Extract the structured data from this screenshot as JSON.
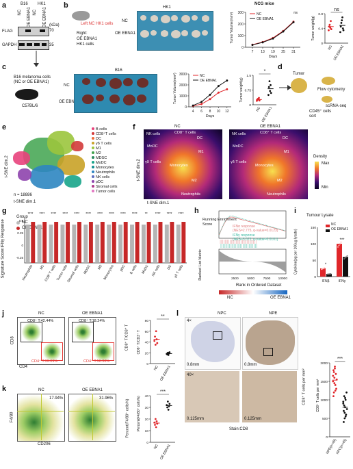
{
  "panel_labels": {
    "a": "a",
    "b": "b",
    "c": "c",
    "d": "d",
    "e": "e",
    "f": "f",
    "g": "g",
    "h": "h",
    "i": "i",
    "j": "j",
    "k": "k",
    "l": "l"
  },
  "a": {
    "b16": "B16",
    "hk1": "HK1",
    "nc": "NC",
    "oe": "OE EBNA1",
    "kda": "(kDa)",
    "flag": "FLAG",
    "gapdh": "GAPDH",
    "m70": "70",
    "m35": "35"
  },
  "b": {
    "mouse_text": "Left:NC HK1 cells",
    "right_text": "Right:",
    "oe_text": "OE EBNA1",
    "hk1_text": "HK1 cells",
    "photo_title": "HK1",
    "row_nc": "NC",
    "row_oe": "OE EBNA1",
    "chart_title": "NCG mice",
    "ns1": "ns",
    "ns2": "ns"
  },
  "c": {
    "photo_title": "B16",
    "row_nc": "NC",
    "row_oe": "OE EBNA1",
    "star": "*"
  },
  "c_left": {
    "cells": "B16 melanoma cells",
    "cells2": "(NC or OE EBNA1)",
    "mouse": "C57BL/6"
  },
  "d": {
    "tumor": "Tumor",
    "flow": "Flow cytometry",
    "scrna": "scRNA-seq",
    "cd45": "CD45⁺ cells",
    "sort": "sort"
  },
  "e": {
    "xlabel": "t-SNE dim.1",
    "ylabel": "t-SNE dim.2",
    "n": "n = 18886",
    "legend": [
      {
        "label": "B cells",
        "color": "#e8427c"
      },
      {
        "label": "CD8⁺T cells",
        "color": "#d33a3a"
      },
      {
        "label": "DC",
        "color": "#ef6b3a"
      },
      {
        "label": "γδ T cells",
        "color": "#c9a227"
      },
      {
        "label": "M1",
        "color": "#9bc53d"
      },
      {
        "label": "M2",
        "color": "#3fa34d"
      },
      {
        "label": "MDSC",
        "color": "#2b8a5e"
      },
      {
        "label": "MoDC",
        "color": "#17a589"
      },
      {
        "label": "Monocytes",
        "color": "#138d90"
      },
      {
        "label": "Neutrophils",
        "color": "#2e86c1"
      },
      {
        "label": "NK cells",
        "color": "#5d6dbe"
      },
      {
        "label": "pDC",
        "color": "#8e44ad"
      },
      {
        "label": "Stromal cells",
        "color": "#b03a8c"
      },
      {
        "label": "Tumor cells",
        "color": "#e377c2"
      }
    ]
  },
  "f": {
    "nc": "NC",
    "oe": "OE EBNA1",
    "xlabel": "t-SNE dim.1",
    "ylabel": "t-SNE dim.2",
    "density": "Density",
    "max": "Max",
    "min": "Min",
    "labels": [
      "NK cells",
      "CD8⁺ T cells",
      "DC",
      "MoDC",
      "M1",
      "γδ T cells",
      "Monocytes",
      "M2",
      "Neutrophils"
    ]
  },
  "g": {
    "ylabel": "Signature Score:IFNγ Response",
    "group": "Group",
    "nc": "NC",
    "oe": "OE EBNA1",
    "cats": [
      "Neutrophils",
      "M1",
      "CD8⁺T cells",
      "Tumor cells",
      "Stromal cells",
      "MDSC",
      "M2",
      "Monocytes",
      "pDC",
      "B cells",
      "MoDC",
      "NK cells",
      "DC",
      "γδ T cells"
    ],
    "sig": [
      "****",
      "****",
      "****",
      "****",
      "****",
      "****",
      "****",
      "****",
      "****",
      "****",
      "**",
      "****",
      "****",
      "****"
    ]
  },
  "h": {
    "ylabel1": "Running Enrichment",
    "ylabel2": "Score",
    "ylabel3": "Ranked List Metric",
    "leg1": "IFNα response",
    "leg1b": "(NES=2.775, q-value=0.0123)",
    "leg2": "IFNγ response",
    "leg2b": "(NES=3.072, q-value=0.0101)",
    "xlabel": "Rank in Ordered Dataset",
    "nc": "NC",
    "oe": "OE EBNA1",
    "ticks": [
      "2500",
      "5000",
      "7500",
      "10000"
    ]
  },
  "i": {
    "title": "Tumour Lysate",
    "ylabel": "Cytokine(pg per 100ug lysate)",
    "nc": "NC",
    "oe": "OE EBNA1",
    "x1": "IFNβ",
    "x2": "IFNγ",
    "s1": "*",
    "s2": "***",
    "yt": [
      "0",
      "50",
      "100",
      "150"
    ]
  },
  "j": {
    "nc": "NC",
    "oe": "OE EBNA1",
    "g1": "CD8⁺ T:42.44%",
    "g2": "CD8⁺ T:18.24%",
    "g3": "CD4⁺ T:39.09%",
    "g4": "CD4⁺ T:56.36%",
    "xl": "CD4",
    "yl": "CD8",
    "ylabel": "CD8⁺ T/CD3⁺ T",
    "star": "**",
    "yt": [
      "0",
      "20",
      "40",
      "60",
      "80"
    ]
  },
  "k": {
    "nc": "NC",
    "oe": "OE EBNA1",
    "p1": "17.94%",
    "p2": "31.96%",
    "xl": "CD206",
    "yl": "F4/80",
    "ylabel": "Percent(F4/80⁺ cells%)",
    "star": "***",
    "yt": [
      "0",
      "10",
      "20",
      "30",
      "40"
    ]
  },
  "l": {
    "npc": "NPC",
    "npe": "NPE",
    "mag4": "4×",
    "mag40": "40×",
    "sb1": "0.8mm",
    "sb2": "0.8mm",
    "sb3": "0.125mm",
    "sb4": "0.125mm",
    "stain": "Stain:CD8",
    "ylabel": "CD8⁺ T cells per mm²",
    "star": "***",
    "x1": "NPE(n=45)",
    "x2": "NPC(n=45)",
    "yt": [
      "0",
      "500",
      "1000",
      "1500",
      "2000"
    ]
  },
  "chart_data": [
    {
      "type": "line",
      "panel": "b",
      "title": "NCG mice",
      "ylabel": "Tumor Volume(mm³)",
      "xlabel": "Days",
      "x": [
        7,
        13,
        19,
        25,
        31
      ],
      "xlim": [
        3,
        35
      ],
      "ylim": [
        0,
        300
      ],
      "series": [
        {
          "name": "NC",
          "color": "#e0262a",
          "values": [
            22,
            45,
            80,
            140,
            220
          ]
        },
        {
          "name": "OE EBNA1",
          "color": "#111111",
          "values": [
            20,
            42,
            75,
            135,
            215
          ]
        }
      ]
    },
    {
      "type": "scatter",
      "panel": "b",
      "ylabel": "Tumor weight(g)",
      "categories": [
        "NC",
        "OE EBNA1"
      ],
      "ylim": [
        0,
        0.8
      ],
      "series": [
        {
          "name": "NC",
          "color": "#e0262a",
          "values": [
            0.35,
            0.45,
            0.5,
            0.42,
            0.6,
            0.38
          ]
        },
        {
          "name": "OE EBNA1",
          "color": "#111111",
          "values": [
            0.3,
            0.45,
            0.55,
            0.62,
            0.7,
            0.4,
            0.35
          ]
        }
      ]
    },
    {
      "type": "line",
      "panel": "c",
      "ylabel": "Tumor Volume(mm³)",
      "xlabel": "Days",
      "x": [
        4,
        6,
        8,
        10,
        12
      ],
      "xlim": [
        3,
        13
      ],
      "ylim": [
        0,
        3000
      ],
      "series": [
        {
          "name": "NC",
          "color": "#e0262a",
          "values": [
            80,
            250,
            700,
            1300,
            1600
          ]
        },
        {
          "name": "OE EBNA1",
          "color": "#111111",
          "values": [
            120,
            450,
            1100,
            1900,
            2400
          ]
        }
      ]
    },
    {
      "type": "scatter",
      "panel": "c",
      "ylabel": "Tumor weight(g)",
      "categories": [
        "NC",
        "OE EBNA1"
      ],
      "ylim": [
        0,
        1.5
      ],
      "series": [
        {
          "name": "NC",
          "color": "#e0262a",
          "values": [
            0.2,
            0.25,
            0.3,
            0.28,
            0.35,
            0.22
          ]
        },
        {
          "name": "OE EBNA1",
          "color": "#111111",
          "values": [
            0.5,
            0.9,
            1.2,
            0.7,
            1.0,
            0.6
          ]
        }
      ]
    },
    {
      "type": "bar",
      "panel": "i",
      "categories": [
        "IFNβ",
        "IFNγ"
      ],
      "ylim": [
        0,
        150
      ],
      "series": [
        {
          "name": "NC",
          "color": "#e0262a",
          "values": [
            25,
            100
          ]
        },
        {
          "name": "OE EBNA1",
          "color": "#111111",
          "values": [
            8,
            60
          ]
        }
      ]
    },
    {
      "type": "scatter",
      "panel": "j",
      "ylabel": "CD8⁺ T/CD3⁺ T",
      "categories": [
        "NC",
        "OE EBNA1"
      ],
      "ylim": [
        0,
        80
      ],
      "series": [
        {
          "name": "NC",
          "color": "#e0262a",
          "values": [
            42,
            50,
            35,
            60,
            45,
            38
          ]
        },
        {
          "name": "OE EBNA1",
          "color": "#111111",
          "values": [
            18,
            17,
            20,
            16,
            19,
            21
          ]
        }
      ]
    },
    {
      "type": "scatter",
      "panel": "k",
      "ylabel": "Percent(F4/80⁺ cells%)",
      "categories": [
        "NC",
        "OE EBNA1"
      ],
      "ylim": [
        0,
        40
      ],
      "series": [
        {
          "name": "NC",
          "color": "#e0262a",
          "values": [
            17,
            15,
            20,
            13,
            18,
            16
          ]
        },
        {
          "name": "OE EBNA1",
          "color": "#111111",
          "values": [
            32,
            30,
            35,
            28,
            31,
            33
          ]
        }
      ]
    },
    {
      "type": "scatter",
      "panel": "l",
      "ylabel": "CD8⁺ T cells per mm²",
      "categories": [
        "NPE(n=45)",
        "NPC(n=45)"
      ],
      "ylim": [
        0,
        2000
      ],
      "series": [
        {
          "name": "NPE",
          "color": "#e0262a",
          "values": [
            1500,
            1800,
            1200,
            1600,
            1900,
            1400,
            1700,
            1300,
            1550,
            1650,
            1100,
            1750,
            1450,
            1850,
            1250
          ]
        },
        {
          "name": "NPC",
          "color": "#111111",
          "values": [
            900,
            700,
            1100,
            500,
            800,
            1000,
            600,
            1200,
            750,
            950,
            400,
            850,
            650,
            1050,
            550
          ]
        }
      ]
    }
  ]
}
